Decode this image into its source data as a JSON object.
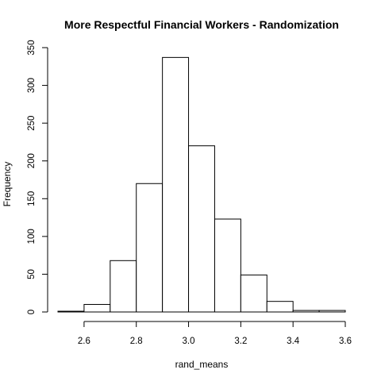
{
  "chart_data": {
    "type": "bar",
    "subtype": "histogram",
    "title": "More Respectful Financial Workers - Randomization",
    "xlabel": "rand_means",
    "ylabel": "Frequency",
    "bins": [
      {
        "x0": 2.5,
        "x1": 2.6,
        "count": 1
      },
      {
        "x0": 2.6,
        "x1": 2.7,
        "count": 10
      },
      {
        "x0": 2.7,
        "x1": 2.8,
        "count": 68
      },
      {
        "x0": 2.8,
        "x1": 2.9,
        "count": 170
      },
      {
        "x0": 2.9,
        "x1": 3.0,
        "count": 337
      },
      {
        "x0": 3.0,
        "x1": 3.1,
        "count": 220
      },
      {
        "x0": 3.1,
        "x1": 3.2,
        "count": 123
      },
      {
        "x0": 3.2,
        "x1": 3.3,
        "count": 49
      },
      {
        "x0": 3.3,
        "x1": 3.4,
        "count": 14
      },
      {
        "x0": 3.4,
        "x1": 3.5,
        "count": 2
      },
      {
        "x0": 3.5,
        "x1": 3.6,
        "count": 2
      }
    ],
    "xlim": [
      2.5,
      3.6
    ],
    "ylim": [
      0,
      350
    ],
    "x_ticks": [
      2.6,
      2.8,
      3.0,
      3.2,
      3.4,
      3.6
    ],
    "x_tick_labels": [
      "2.6",
      "2.8",
      "3.0",
      "3.2",
      "3.4",
      "3.6"
    ],
    "y_ticks": [
      0,
      50,
      100,
      150,
      200,
      250,
      300,
      350
    ],
    "y_tick_labels": [
      "0",
      "50",
      "100",
      "150",
      "200",
      "250",
      "300",
      "350"
    ],
    "grid": false,
    "legend": "none",
    "bar_fill": "#ffffff",
    "bar_stroke": "#000000"
  }
}
